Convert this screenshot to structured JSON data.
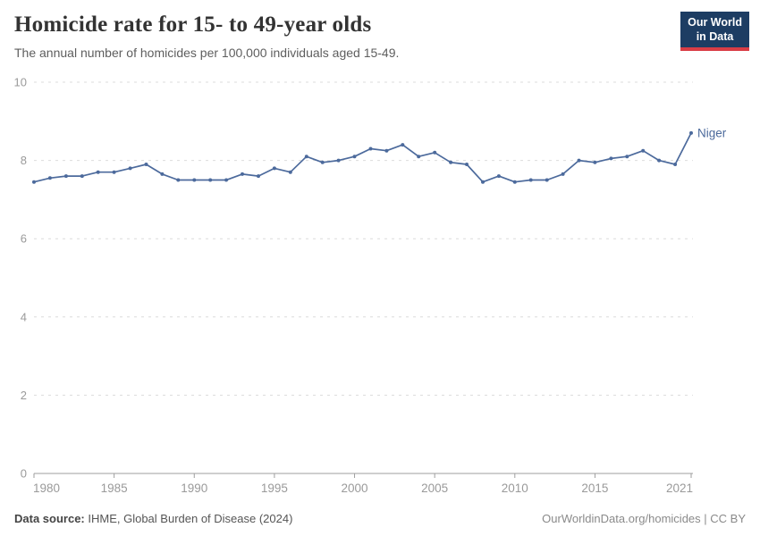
{
  "header": {
    "title": "Homicide rate for 15- to 49-year olds",
    "subtitle": "The annual number of homicides per 100,000 individuals aged 15-49.",
    "logo": {
      "line1": "Our World",
      "line2": "in Data",
      "bg_color": "#1d3d63",
      "accent_color": "#d93d45"
    }
  },
  "chart_data": {
    "type": "line",
    "title": "Homicide rate for 15- to 49-year olds",
    "subtitle": "The annual number of homicides per 100,000 individuals aged 15-49.",
    "xlabel": "",
    "ylabel": "",
    "xlim": [
      1980,
      2021
    ],
    "ylim": [
      0,
      10
    ],
    "x_ticks": [
      1980,
      1985,
      1990,
      1995,
      2000,
      2005,
      2010,
      2015,
      2021
    ],
    "y_ticks": [
      0,
      2,
      4,
      6,
      8,
      10
    ],
    "grid": "horizontal-dashed",
    "legend_position": "end-of-line-label",
    "x": [
      1980,
      1981,
      1982,
      1983,
      1984,
      1985,
      1986,
      1987,
      1988,
      1989,
      1990,
      1991,
      1992,
      1993,
      1994,
      1995,
      1996,
      1997,
      1998,
      1999,
      2000,
      2001,
      2002,
      2003,
      2004,
      2005,
      2006,
      2007,
      2008,
      2009,
      2010,
      2011,
      2012,
      2013,
      2014,
      2015,
      2016,
      2017,
      2018,
      2019,
      2020,
      2021
    ],
    "series": [
      {
        "name": "Niger",
        "color": "#4c6a9c",
        "values": [
          7.45,
          7.55,
          7.6,
          7.6,
          7.7,
          7.7,
          7.8,
          7.9,
          7.65,
          7.5,
          7.5,
          7.5,
          7.5,
          7.65,
          7.6,
          7.8,
          7.7,
          8.1,
          7.95,
          8.0,
          8.1,
          8.3,
          8.25,
          8.4,
          8.1,
          8.2,
          7.95,
          7.9,
          7.45,
          7.6,
          7.45,
          7.5,
          7.5,
          7.65,
          8.0,
          7.95,
          8.05,
          8.1,
          8.25,
          8.0,
          7.9,
          8.7
        ]
      }
    ],
    "axis_color": "#9e9e9e",
    "grid_color": "#dcdcdc",
    "tick_label_color": "#9a9a9a"
  },
  "footer": {
    "datasource_label": "Data source:",
    "datasource_value": "IHME, Global Burden of Disease (2024)",
    "credit": "OurWorldinData.org/homicides | CC BY"
  }
}
